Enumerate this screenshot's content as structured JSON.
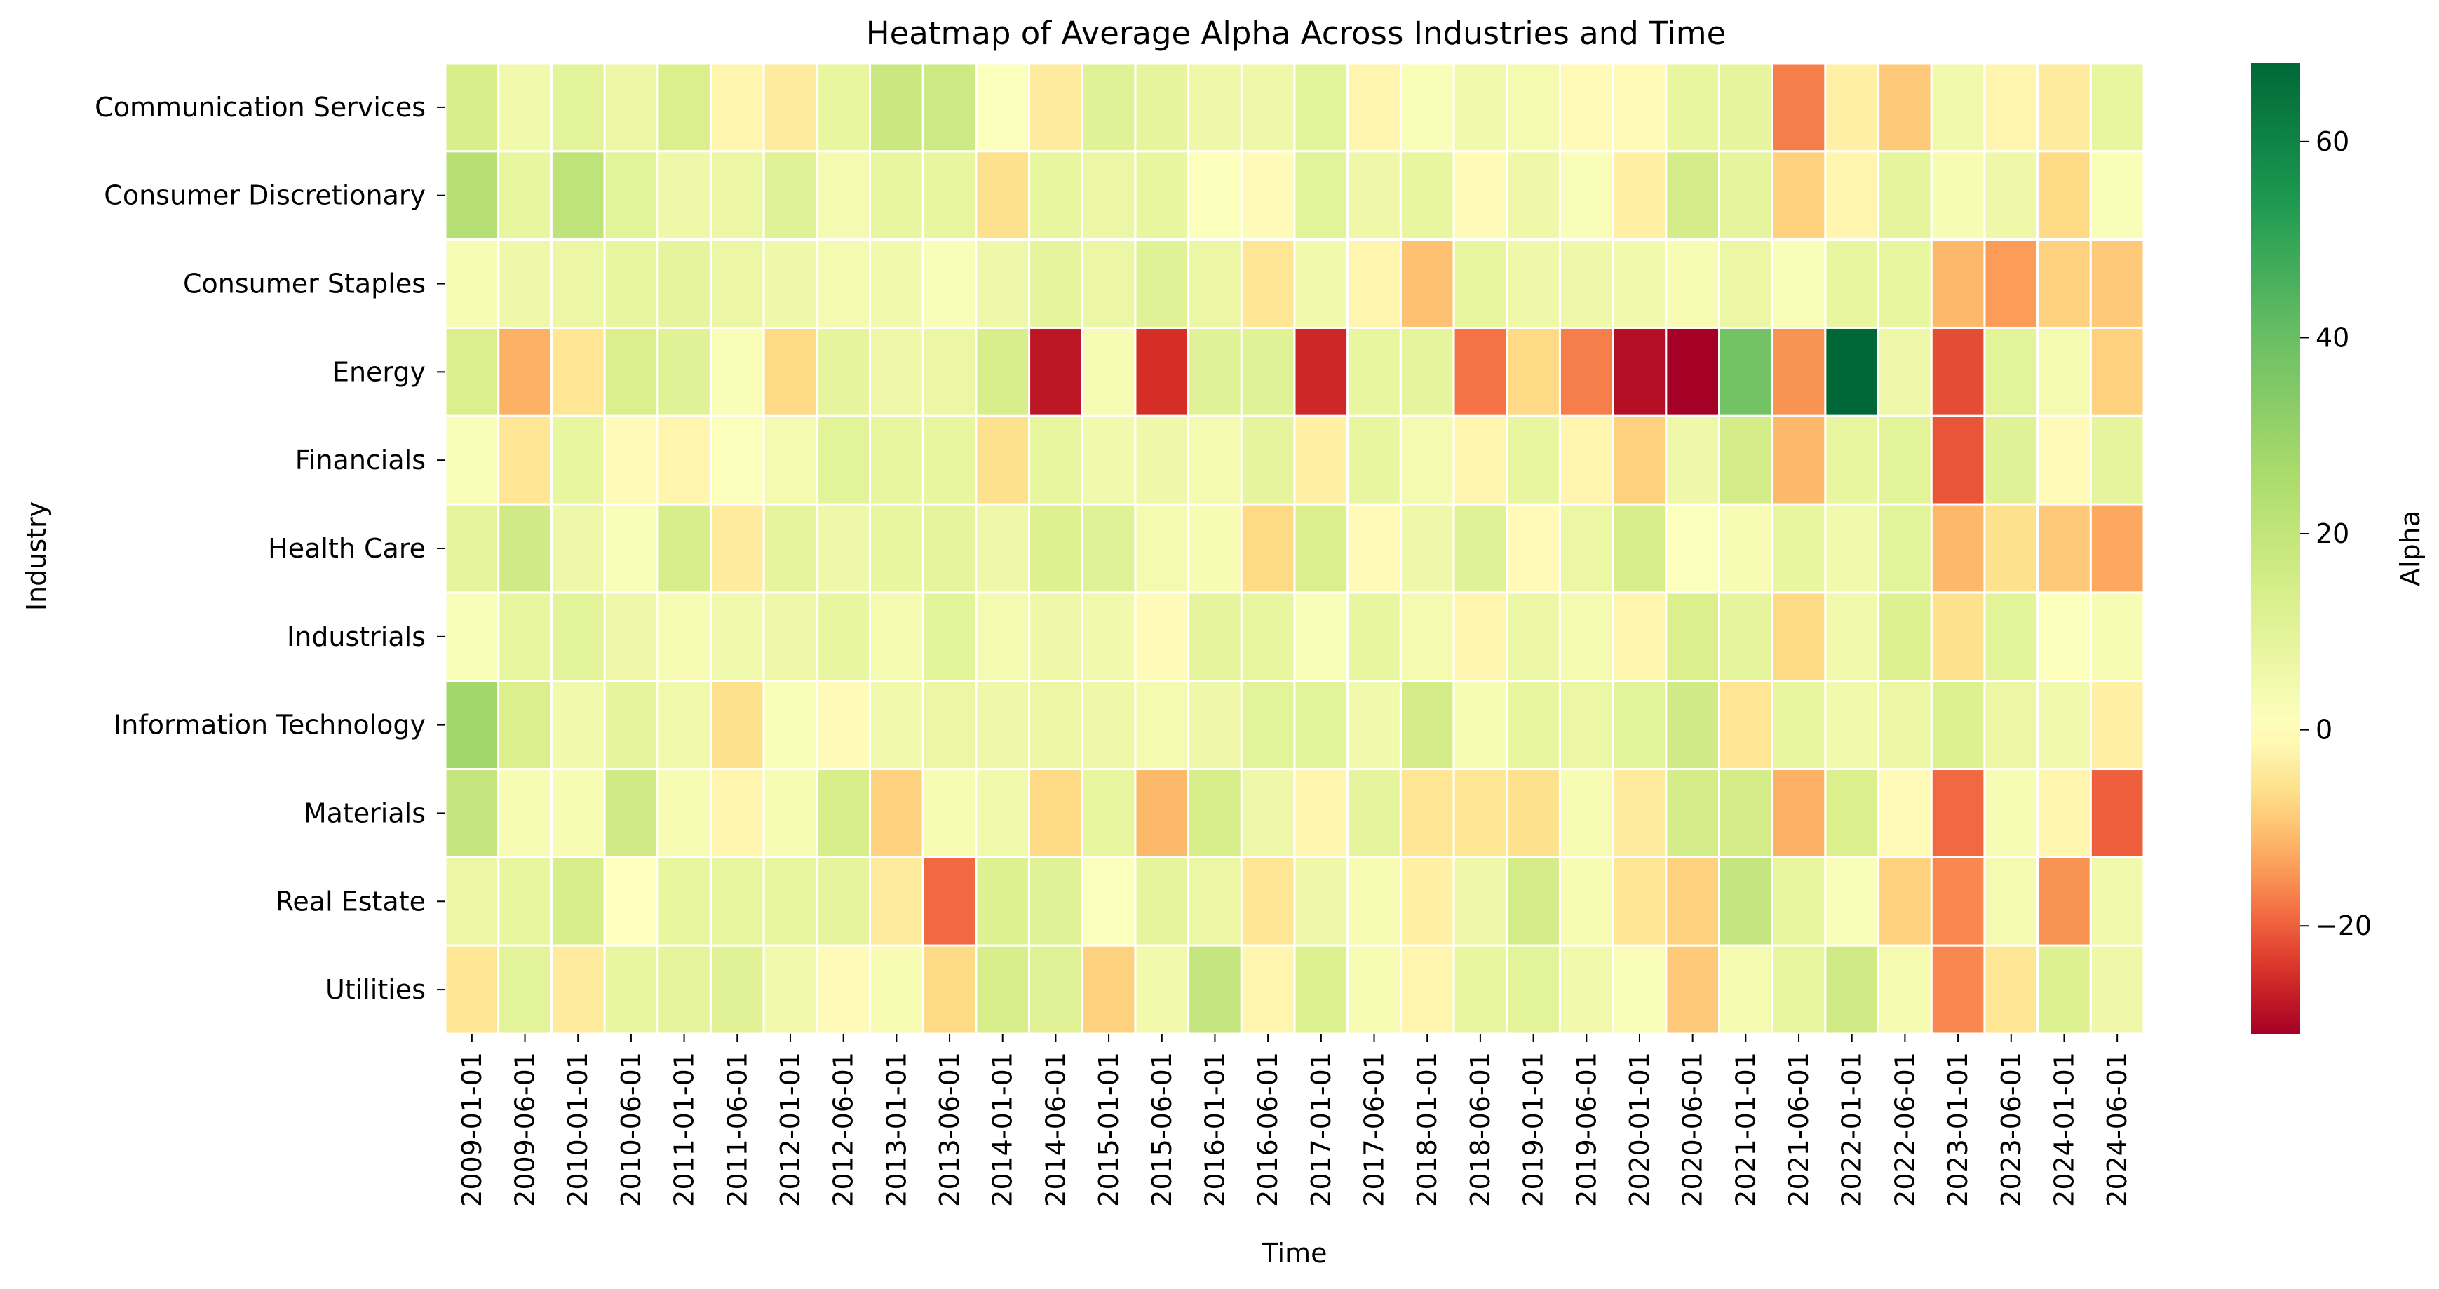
{
  "chart_data": {
    "type": "heatmap",
    "title": "Heatmap of Average Alpha Across Industries and Time",
    "xlabel": "Time",
    "ylabel": "Industry",
    "colorbar_label": "Alpha",
    "colormap": "RdYlGn",
    "vmin": -31,
    "vmax": 68,
    "vcenter": 0,
    "colorbar_ticks": [
      {
        "value": 60,
        "label": "60"
      },
      {
        "value": 40,
        "label": "40"
      },
      {
        "value": 20,
        "label": "20"
      },
      {
        "value": 0,
        "label": "0"
      },
      {
        "value": -20,
        "label": "−20"
      }
    ],
    "cell_border_color": "#ffffff",
    "x": [
      "2009-01-01",
      "2009-06-01",
      "2010-01-01",
      "2010-06-01",
      "2011-01-01",
      "2011-06-01",
      "2012-01-01",
      "2012-06-01",
      "2013-01-01",
      "2013-06-01",
      "2014-01-01",
      "2014-06-01",
      "2015-01-01",
      "2015-06-01",
      "2016-01-01",
      "2016-06-01",
      "2017-01-01",
      "2017-06-01",
      "2018-01-01",
      "2018-06-01",
      "2019-01-01",
      "2019-06-01",
      "2020-01-01",
      "2020-06-01",
      "2021-01-01",
      "2021-06-01",
      "2022-01-01",
      "2022-06-01",
      "2023-01-01",
      "2023-06-01",
      "2024-01-01",
      "2024-06-01"
    ],
    "y": [
      "Communication Services",
      "Consumer Discretionary",
      "Consumer Staples",
      "Energy",
      "Financials",
      "Health Care",
      "Industrials",
      "Information Technology",
      "Materials",
      "Real Estate",
      "Utilities"
    ],
    "values": [
      [
        14,
        5,
        10,
        7,
        13,
        -2,
        -4,
        8,
        18,
        17,
        1,
        -4,
        11,
        9,
        6,
        6,
        10,
        -2,
        2,
        5,
        4,
        -1,
        -1,
        8,
        9,
        -17,
        -3,
        -9,
        5,
        -2,
        -4,
        8
      ],
      [
        23,
        8,
        21,
        10,
        6,
        7,
        11,
        4,
        8,
        8,
        -6,
        8,
        7,
        8,
        1,
        -1,
        10,
        6,
        8,
        -1,
        6,
        2,
        -3,
        15,
        9,
        -8,
        -2,
        9,
        3,
        6,
        -7,
        2
      ],
      [
        3,
        6,
        7,
        8,
        9,
        7,
        6,
        4,
        5,
        2,
        6,
        9,
        7,
        11,
        7,
        -5,
        5,
        -2,
        -10,
        8,
        6,
        6,
        5,
        3,
        7,
        2,
        8,
        8,
        -11,
        -14,
        -8,
        -9
      ],
      [
        13,
        -12,
        -5,
        13,
        11,
        2,
        -7,
        9,
        6,
        7,
        14,
        -28,
        3,
        -25,
        11,
        11,
        -26,
        8,
        9,
        -18,
        -7,
        -17,
        -29,
        -31,
        38,
        -15,
        68,
        6,
        -22,
        10,
        4,
        -8
      ],
      [
        2,
        -5,
        8,
        -1,
        -2,
        1,
        4,
        10,
        8,
        8,
        -6,
        8,
        5,
        6,
        4,
        9,
        -3,
        8,
        4,
        -2,
        8,
        -2,
        -8,
        6,
        15,
        -11,
        8,
        10,
        -21,
        11,
        -1,
        9
      ],
      [
        9,
        16,
        6,
        2,
        14,
        -4,
        9,
        6,
        8,
        9,
        6,
        12,
        11,
        4,
        3,
        -7,
        13,
        -1,
        6,
        11,
        -1,
        7,
        14,
        1,
        3,
        8,
        5,
        10,
        -11,
        -6,
        -9,
        -13
      ],
      [
        2,
        8,
        10,
        6,
        3,
        5,
        6,
        8,
        4,
        10,
        4,
        6,
        5,
        -1,
        9,
        8,
        2,
        8,
        4,
        -2,
        7,
        4,
        -2,
        13,
        9,
        -7,
        5,
        12,
        -6,
        10,
        1,
        3
      ],
      [
        28,
        13,
        5,
        9,
        5,
        -6,
        2,
        -1,
        5,
        7,
        6,
        7,
        6,
        4,
        6,
        10,
        10,
        5,
        15,
        3,
        8,
        7,
        10,
        16,
        -5,
        8,
        5,
        7,
        12,
        7,
        5,
        -3
      ],
      [
        19,
        3,
        3,
        16,
        3,
        -2,
        3,
        14,
        -8,
        3,
        5,
        -7,
        8,
        -11,
        14,
        6,
        -2,
        9,
        -5,
        -5,
        -6,
        3,
        -4,
        15,
        15,
        -12,
        13,
        -1,
        -19,
        3,
        -2,
        -20
      ],
      [
        7,
        8,
        14,
        0,
        8,
        8,
        8,
        9,
        -4,
        -19,
        12,
        11,
        1,
        9,
        7,
        -5,
        6,
        3,
        -3,
        6,
        15,
        3,
        -5,
        -8,
        19,
        8,
        2,
        -8,
        -16,
        4,
        -15,
        5
      ],
      [
        -5,
        10,
        -4,
        8,
        9,
        11,
        5,
        -1,
        3,
        -7,
        14,
        11,
        -8,
        5,
        19,
        -2,
        12,
        3,
        -2,
        8,
        10,
        5,
        2,
        -9,
        4,
        8,
        16,
        4,
        -16,
        -5,
        12,
        6
      ]
    ]
  }
}
